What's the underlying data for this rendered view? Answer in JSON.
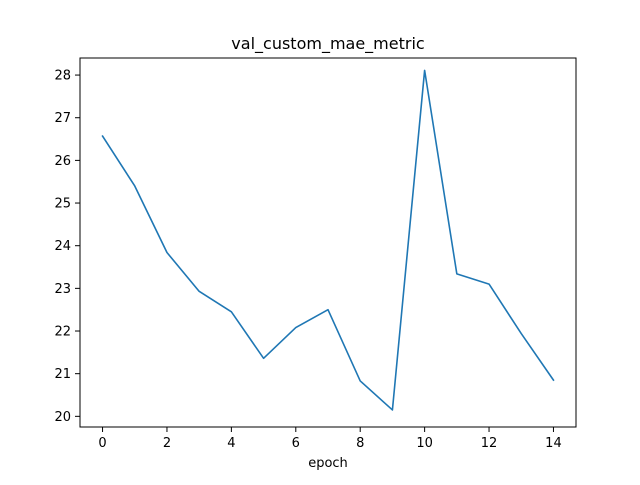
{
  "chart_data": {
    "type": "line",
    "title": "val_custom_mae_metric",
    "xlabel": "epoch",
    "ylabel": "",
    "xlim": [
      -0.7,
      14.7
    ],
    "ylim": [
      19.75,
      28.4
    ],
    "xticks": [
      0,
      2,
      4,
      6,
      8,
      10,
      12,
      14
    ],
    "yticks": [
      20,
      21,
      22,
      23,
      24,
      25,
      26,
      27,
      28
    ],
    "grid": false,
    "legend": "none",
    "series": [
      {
        "color": "#1f77b4",
        "x": [
          0,
          1,
          2,
          3,
          4,
          5,
          6,
          7,
          8,
          9,
          10,
          11,
          12,
          13,
          14
        ],
        "values": [
          26.57,
          25.4,
          23.84,
          22.93,
          22.45,
          21.36,
          22.08,
          22.5,
          20.83,
          20.15,
          28.11,
          23.34,
          23.1,
          21.94,
          20.85
        ]
      }
    ]
  }
}
